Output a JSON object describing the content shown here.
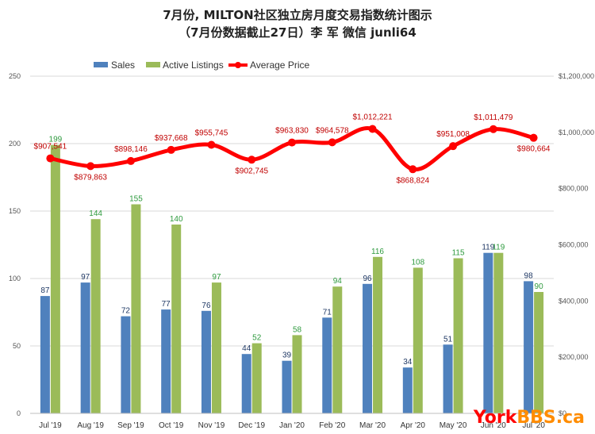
{
  "chart_data": {
    "type": "bar",
    "title_line1": "7月份, MILTON社区独立房月度交易指数统计图示",
    "title_line2": "（7月份数据截止27日）李 军  微信  junli64",
    "categories": [
      "Jul '19",
      "Aug '19",
      "Sep '19",
      "Oct '19",
      "Nov '19",
      "Dec '19",
      "Jan '20",
      "Feb '20",
      "Mar '20",
      "Apr '20",
      "May '20",
      "Jun '20",
      "Jul '20"
    ],
    "series": [
      {
        "name": "Sales",
        "type": "bar",
        "axis": "left",
        "color": "#4f81bd",
        "values": [
          87,
          97,
          72,
          77,
          76,
          44,
          39,
          71,
          96,
          34,
          51,
          119,
          98
        ],
        "labels": [
          "87",
          "97",
          "72",
          "77",
          "76",
          "44",
          "39",
          "71",
          "96",
          "34",
          "51",
          "119",
          "98"
        ]
      },
      {
        "name": "Active Listings",
        "type": "bar",
        "axis": "left",
        "color": "#9bbb59",
        "values": [
          199,
          144,
          155,
          140,
          97,
          52,
          58,
          94,
          116,
          108,
          115,
          119,
          90
        ],
        "labels": [
          "199",
          "144",
          "155",
          "140",
          "97",
          "52",
          "58",
          "94",
          "116",
          "108",
          "115",
          "119",
          "90"
        ]
      },
      {
        "name": "Average Price",
        "type": "line",
        "axis": "right",
        "color": "#ff0000",
        "values": [
          907541,
          879863,
          898146,
          937668,
          955745,
          902745,
          963830,
          964578,
          1012221,
          868824,
          951008,
          1011479,
          980664
        ],
        "labels": [
          "$907,541",
          "$879,863",
          "$898,146",
          "$937,668",
          "$955,745",
          "$902,745",
          "$963,830",
          "$964,578",
          "$1,012,221",
          "$868,824",
          "$951,008",
          "$1,011,479",
          "$980,664"
        ]
      }
    ],
    "y_left": {
      "min": 0,
      "max": 250,
      "ticks": [
        "0",
        "50",
        "100",
        "150",
        "200",
        "250"
      ]
    },
    "y_right": {
      "min": 0,
      "max": 1200000,
      "ticks": [
        "$0",
        "$200,000",
        "$400,000",
        "$600,000",
        "$800,000",
        "$1,000,000",
        "$1,200,000"
      ]
    },
    "grid": true,
    "legend_position": "top-left"
  },
  "watermark": {
    "text": "YorkBBS.ca",
    "colors": [
      "#ff0000",
      "#ff8c00"
    ]
  }
}
